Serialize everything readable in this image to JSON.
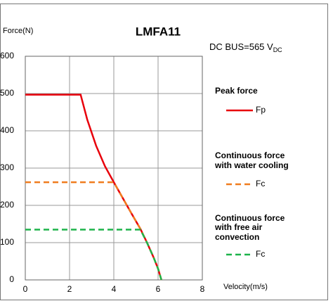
{
  "chart_data": {
    "type": "line",
    "title": "LMFA11",
    "y_label": "Force(N)",
    "x_label": "Velocity(m/s)",
    "annotation": {
      "text": "DC BUS=565 V",
      "subscript": "DC"
    },
    "xlim": [
      0,
      8
    ],
    "xticks": [
      0,
      2,
      4,
      6,
      8
    ],
    "ylim": [
      0,
      600
    ],
    "yticks": [
      0,
      100,
      200,
      300,
      400,
      500,
      600
    ],
    "grid": true,
    "series": [
      {
        "name": "Fp",
        "group_title": [
          "Peak force"
        ],
        "color": "#e8000b",
        "dash": false,
        "x": [
          0,
          2.5,
          2.8,
          3.2,
          3.6,
          4,
          4.4,
          4.8,
          5.2,
          5.5,
          5.8,
          6.0,
          6.15
        ],
        "values": [
          497,
          497,
          430,
          360,
          305,
          262,
          220,
          178,
          137,
          100,
          60,
          30,
          0
        ]
      },
      {
        "name": "Fc",
        "group_title": [
          "Continuous force",
          "with water cooling"
        ],
        "color": "#f07c1e",
        "dash": true,
        "x": [
          0,
          4,
          4.4,
          4.8,
          5.2,
          5.5,
          5.8,
          6.0,
          6.15
        ],
        "values": [
          262,
          262,
          220,
          178,
          137,
          100,
          60,
          30,
          0
        ]
      },
      {
        "name": "Fc",
        "group_title": [
          "Continuous force",
          "with free air",
          "convection"
        ],
        "color": "#1db34a",
        "dash": true,
        "x": [
          0,
          5.2,
          5.5,
          5.8,
          6.0,
          6.15
        ],
        "values": [
          135,
          135,
          100,
          60,
          30,
          0
        ]
      }
    ]
  }
}
